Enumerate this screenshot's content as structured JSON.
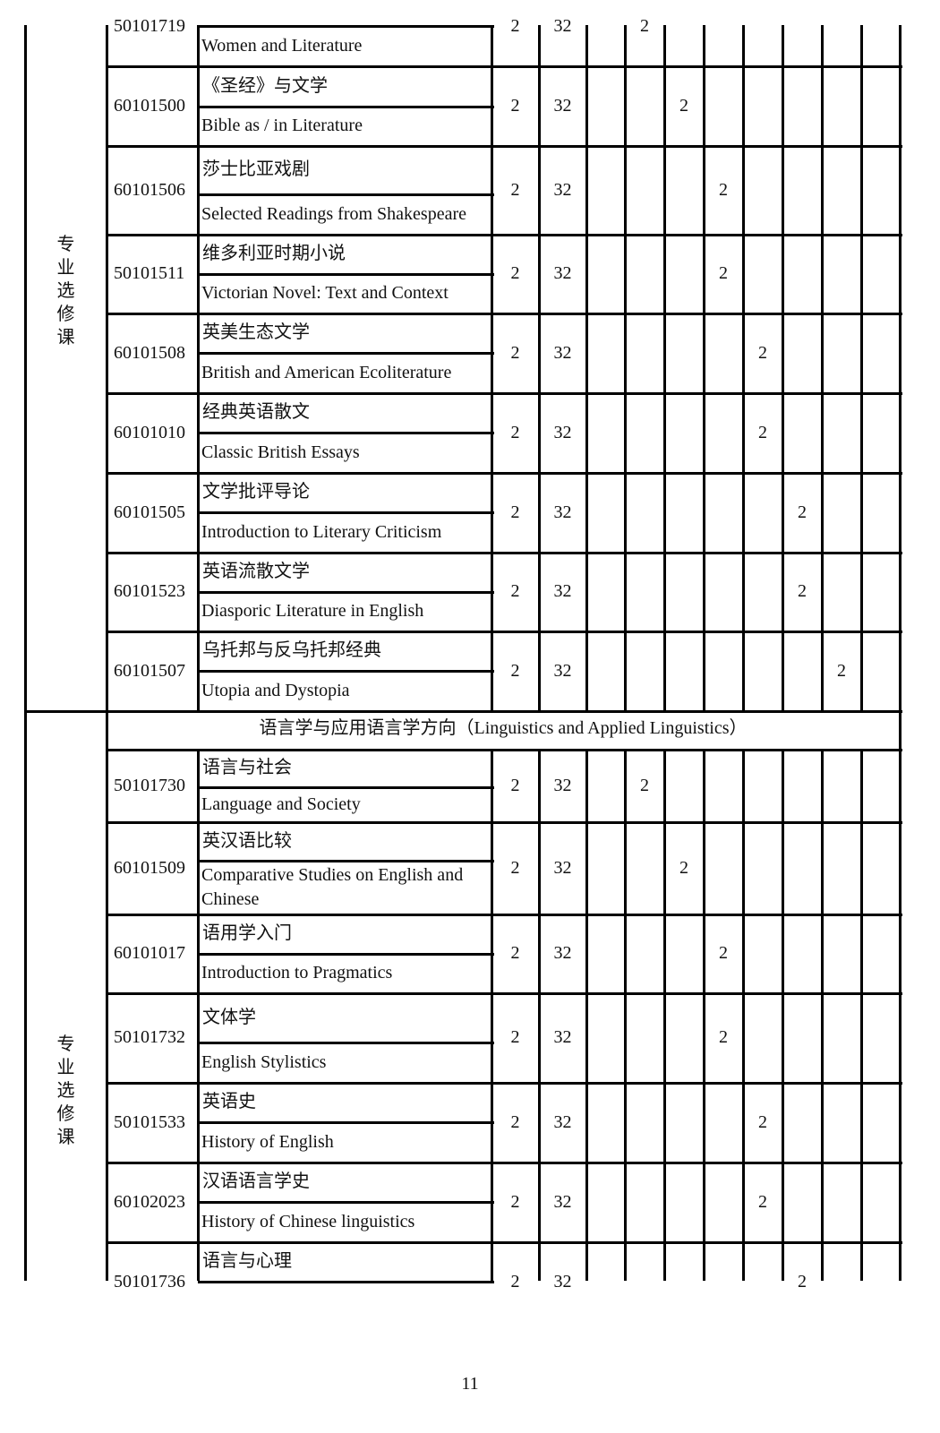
{
  "categories": [
    {
      "label": "专\n业\n选\n修\n课"
    },
    {
      "label": "专\n业\n选\n修\n课"
    }
  ],
  "section_header": "语言学与应用语言学方向（Linguistics and Applied Linguistics）",
  "rows_group1": [
    {
      "code": "50101719",
      "cn": "",
      "en": "Women and Literature",
      "credits": "2",
      "hours": "32",
      "semesters": [
        "",
        "2",
        "",
        "",
        "",
        "",
        "",
        ""
      ]
    },
    {
      "code": "60101500",
      "cn": "《圣经》与文学",
      "en": "Bible as / in Literature",
      "credits": "2",
      "hours": "32",
      "semesters": [
        "",
        "",
        "2",
        "",
        "",
        "",
        "",
        ""
      ]
    },
    {
      "code": "60101506",
      "cn": "莎士比亚戏剧",
      "en": "Selected Readings from Shakespeare",
      "credits": "2",
      "hours": "32",
      "semesters": [
        "",
        "",
        "",
        "2",
        "",
        "",
        "",
        ""
      ]
    },
    {
      "code": "50101511",
      "cn": "维多利亚时期小说",
      "en": "Victorian Novel: Text and Context",
      "credits": "2",
      "hours": "32",
      "semesters": [
        "",
        "",
        "",
        "2",
        "",
        "",
        "",
        ""
      ]
    },
    {
      "code": "60101508",
      "cn": "英美生态文学",
      "en": "British and American Ecoliterature",
      "credits": "2",
      "hours": "32",
      "semesters": [
        "",
        "",
        "",
        "",
        "2",
        "",
        "",
        ""
      ]
    },
    {
      "code": "60101010",
      "cn": "经典英语散文",
      "en": "Classic British Essays",
      "credits": "2",
      "hours": "32",
      "semesters": [
        "",
        "",
        "",
        "",
        "2",
        "",
        "",
        ""
      ]
    },
    {
      "code": "60101505",
      "cn": "文学批评导论",
      "en": "Introduction to Literary Criticism",
      "credits": "2",
      "hours": "32",
      "semesters": [
        "",
        "",
        "",
        "",
        "",
        "2",
        "",
        ""
      ]
    },
    {
      "code": "60101523",
      "cn": "英语流散文学",
      "en": "Diasporic Literature in English",
      "credits": "2",
      "hours": "32",
      "semesters": [
        "",
        "",
        "",
        "",
        "",
        "2",
        "",
        ""
      ]
    },
    {
      "code": "60101507",
      "cn": "乌托邦与反乌托邦经典",
      "en": "Utopia and Dystopia",
      "credits": "2",
      "hours": "32",
      "semesters": [
        "",
        "",
        "",
        "",
        "",
        "",
        "2",
        ""
      ]
    }
  ],
  "rows_group2": [
    {
      "code": "50101730",
      "cn": "语言与社会",
      "en": "Language and Society",
      "credits": "2",
      "hours": "32",
      "semesters": [
        "",
        "2",
        "",
        "",
        "",
        "",
        "",
        ""
      ]
    },
    {
      "code": "60101509",
      "cn": "英汉语比较",
      "en": "Comparative Studies on English and\nChinese",
      "credits": "2",
      "hours": "32",
      "semesters": [
        "",
        "",
        "2",
        "",
        "",
        "",
        "",
        ""
      ]
    },
    {
      "code": "60101017",
      "cn": "语用学入门",
      "en": "Introduction to Pragmatics",
      "credits": "2",
      "hours": "32",
      "semesters": [
        "",
        "",
        "",
        "2",
        "",
        "",
        "",
        ""
      ]
    },
    {
      "code": "50101732",
      "cn": "文体学",
      "en": "English Stylistics",
      "credits": "2",
      "hours": "32",
      "semesters": [
        "",
        "",
        "",
        "2",
        "",
        "",
        "",
        ""
      ]
    },
    {
      "code": "50101533",
      "cn": "英语史",
      "en": "History of English",
      "credits": "2",
      "hours": "32",
      "semesters": [
        "",
        "",
        "",
        "",
        "2",
        "",
        "",
        ""
      ]
    },
    {
      "code": "60102023",
      "cn": "汉语语言学史",
      "en": "History of Chinese linguistics",
      "credits": "2",
      "hours": "32",
      "semesters": [
        "",
        "",
        "",
        "",
        "2",
        "",
        "",
        ""
      ]
    },
    {
      "code": "50101736",
      "cn": "语言与心理",
      "en": "",
      "credits": "2",
      "hours": "32",
      "semesters": [
        "",
        "",
        "",
        "",
        "",
        "2",
        "",
        ""
      ]
    }
  ],
  "page_number": "11"
}
